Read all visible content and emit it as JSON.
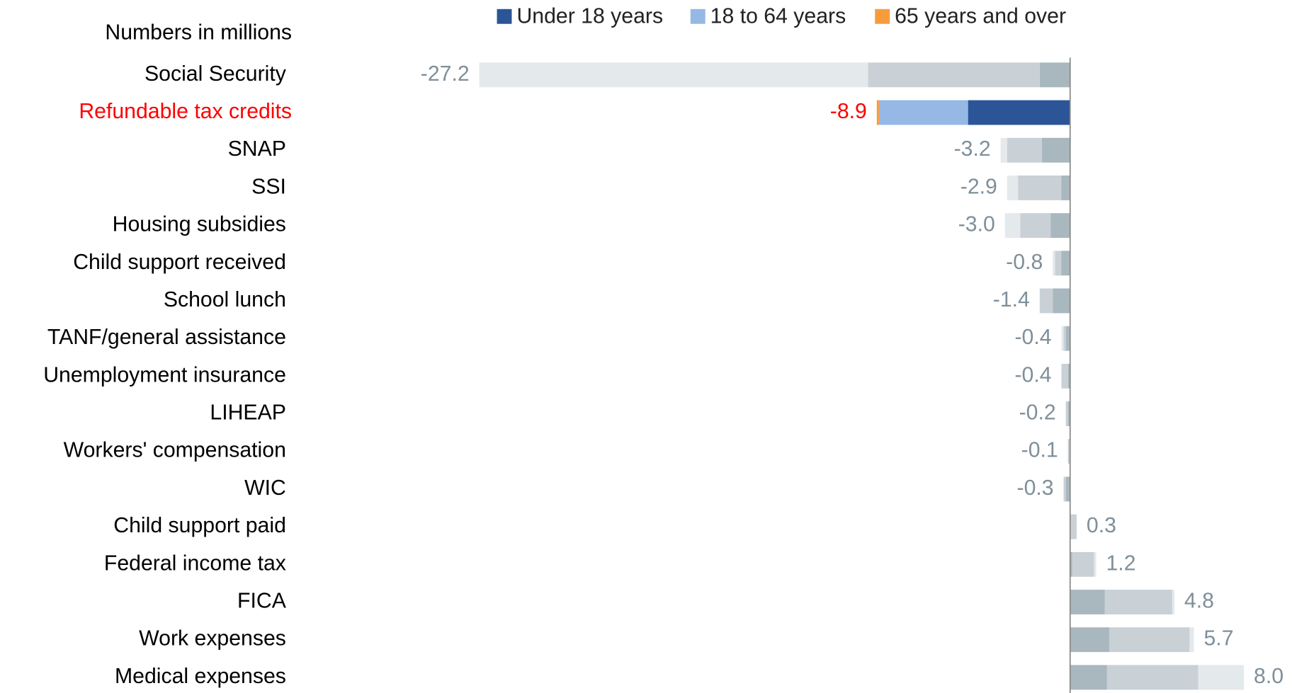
{
  "chart_data": {
    "type": "stacked_barh",
    "title": "Numbers in millions",
    "categories": [
      "Social Security",
      "Refundable tax credits",
      "SNAP",
      "SSI",
      "Housing subsidies",
      "Child support received",
      "School lunch",
      "TANF/general assistance",
      "Unemployment insurance",
      "LIHEAP",
      "Workers' compensation",
      "WIC",
      "Child support paid",
      "Federal income tax",
      "FICA",
      "Work expenses",
      "Medical expenses"
    ],
    "series": [
      {
        "name": "Under 18 years",
        "color": "#2b5597",
        "muted_color": "#a9b7be",
        "values": [
          -1.4,
          -4.7,
          -1.3,
          -0.4,
          -0.9,
          -0.4,
          -0.8,
          -0.2,
          -0.1,
          -0.1,
          0.0,
          -0.2,
          0.0,
          0.1,
          1.6,
          1.8,
          1.7
        ]
      },
      {
        "name": "18 to 64 years",
        "color": "#95b8e5",
        "muted_color": "#c9d0d6",
        "values": [
          -7.9,
          -4.1,
          -1.6,
          -2.0,
          -1.4,
          -0.3,
          -0.6,
          -0.1,
          -0.3,
          -0.1,
          -0.1,
          -0.1,
          0.3,
          1.0,
          3.1,
          3.7,
          4.2
        ]
      },
      {
        "name": "65 years and over",
        "color": "#f79b3c",
        "muted_color": "#e4e9ec",
        "values": [
          -17.9,
          -0.1,
          -0.3,
          -0.5,
          -0.7,
          -0.1,
          0.0,
          -0.1,
          0.0,
          0.0,
          0.0,
          0.0,
          0.0,
          0.1,
          0.1,
          0.2,
          2.1
        ]
      }
    ],
    "value_labels": [
      "-27.2",
      "-8.9",
      "-3.2",
      "-2.9",
      "-3.0",
      "-0.8",
      "-1.4",
      "-0.4",
      "-0.4",
      "-0.2",
      "-0.1",
      "-0.3",
      "0.3",
      "1.2",
      "4.8",
      "5.7",
      "8.0"
    ],
    "highlight": 1,
    "highlight_color": "#ff0000",
    "label_color": "#7f8f9a",
    "xlim": [
      -35.6,
      10.2
    ]
  }
}
